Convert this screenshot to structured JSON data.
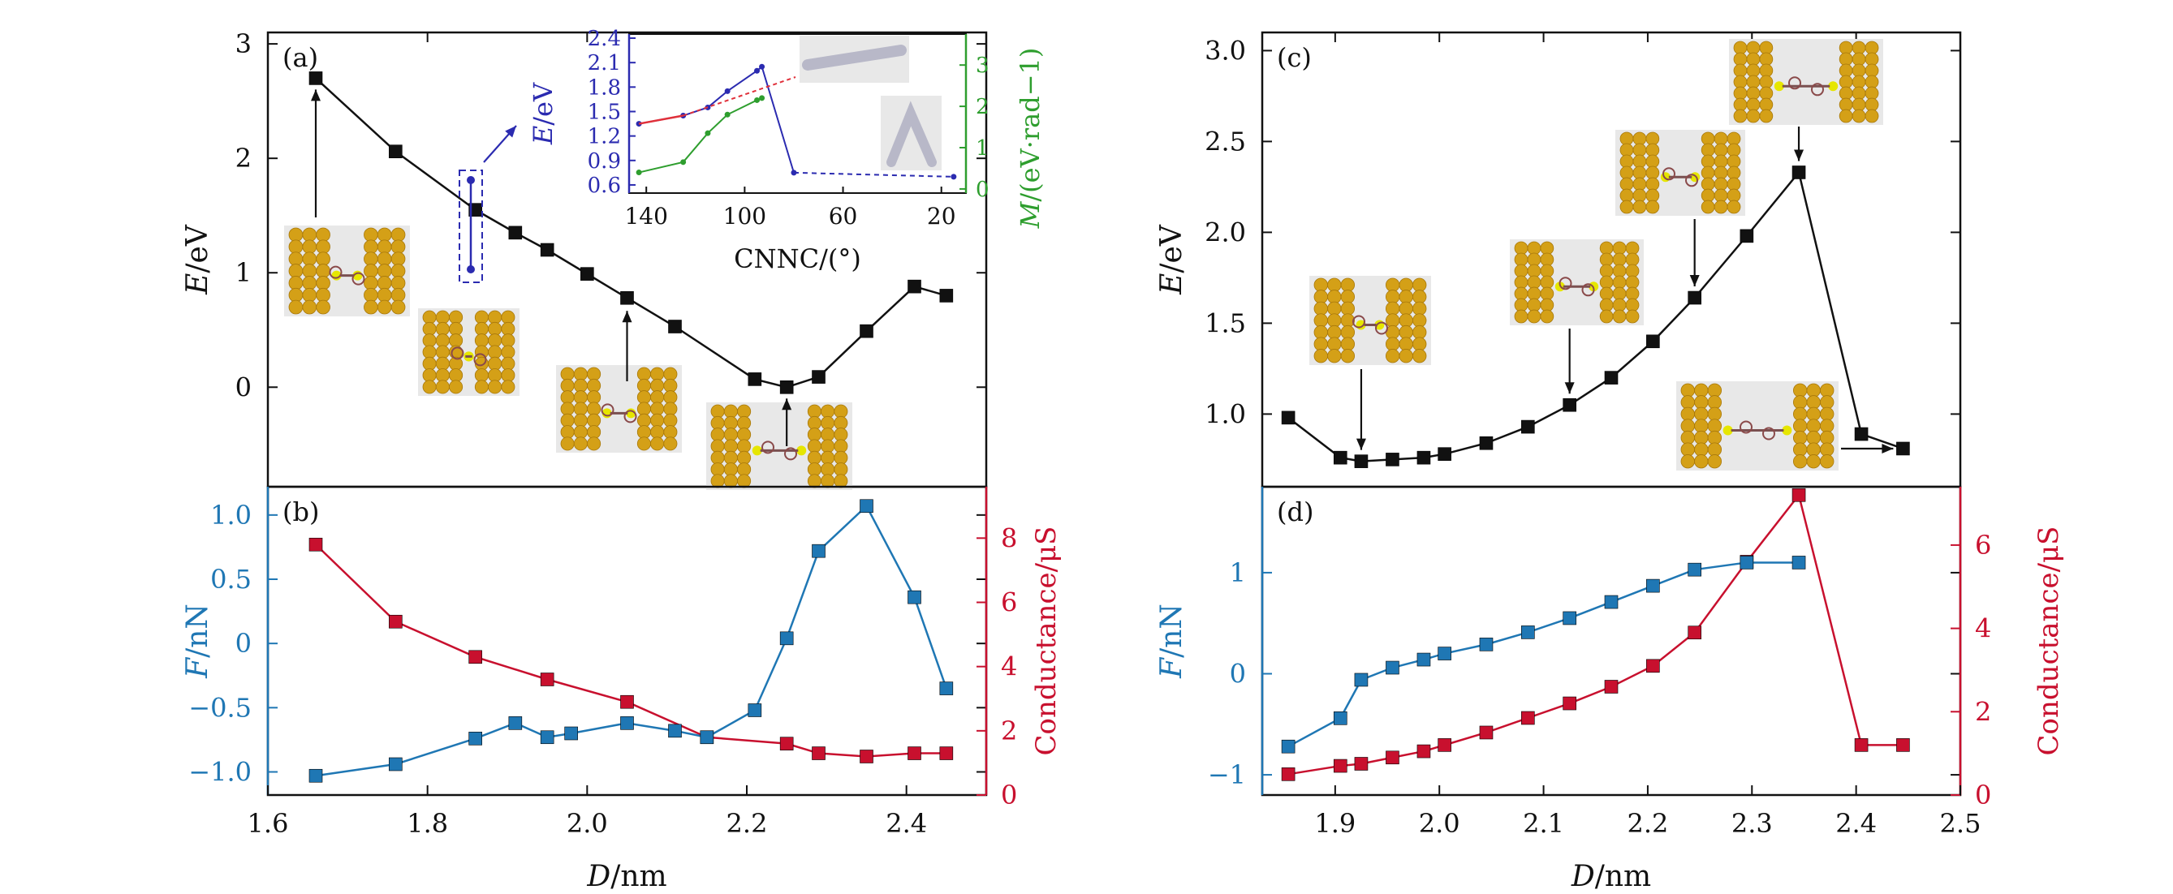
{
  "colors": {
    "black": "#111111",
    "blue": "#1f77b4",
    "red": "#c8102e",
    "inset_blue": "#2b2bb0",
    "inset_green": "#2e9e2e",
    "inset_red": "#e0303a",
    "gold": "#d4a017",
    "molecule_bg": "#e8e8e8"
  },
  "chart_data": [
    {
      "panel": "a",
      "label": "(a)",
      "type": "line",
      "ylabel": "E/eV",
      "xlim": [
        1.6,
        2.5
      ],
      "ylim": [
        -0.87,
        3.1
      ],
      "yticks": [
        0,
        1,
        2,
        3
      ],
      "yticklabels": [
        "0",
        "1",
        "2",
        "3"
      ],
      "x": [
        1.66,
        1.76,
        1.86,
        1.91,
        1.95,
        2.0,
        2.05,
        2.11,
        2.21,
        2.25,
        2.29,
        2.35,
        2.41,
        2.45
      ],
      "series": [
        {
          "values": [
            2.7,
            2.06,
            1.55,
            1.35,
            1.2,
            0.99,
            0.78,
            0.53,
            0.07,
            0.0,
            0.09,
            0.49,
            0.88,
            0.8
          ]
        }
      ],
      "inset": {
        "xlabel": "CNNC/(°)",
        "ylabel": "E/eV",
        "y2label": "M/(eV·rad−1)",
        "xticklabels": [
          "140",
          "100",
          "60",
          "20"
        ],
        "yticklabels": [
          "0.6",
          "0.9",
          "1.2",
          "1.5",
          "1.8",
          "2.1",
          "2.4"
        ],
        "y2ticklabels": [
          "0",
          "1",
          "2",
          "3"
        ],
        "xlim": [
          147,
          10
        ],
        "ylim": [
          0.5,
          2.45
        ],
        "y2lim": [
          -0.1,
          3.75
        ],
        "energy_x": [
          143,
          125,
          115,
          107,
          95,
          93,
          80,
          15
        ],
        "energy_y": [
          1.35,
          1.45,
          1.55,
          1.75,
          2.0,
          2.05,
          0.75,
          0.7
        ],
        "moment_x": [
          143,
          125,
          115,
          107,
          95,
          93
        ],
        "moment_y": [
          0.4,
          0.65,
          1.35,
          1.8,
          2.15,
          2.2
        ]
      }
    },
    {
      "panel": "b",
      "label": "(b)",
      "type": "line",
      "ylabel": "F/nN",
      "y2label": "Conductance/μS",
      "xlabel": "D/nm",
      "xlim": [
        1.6,
        2.5
      ],
      "xticks": [
        1.6,
        1.8,
        2.0,
        2.2,
        2.4
      ],
      "xticklabels": [
        "1.6",
        "1.8",
        "2.0",
        "2.2",
        "2.4"
      ],
      "ylim": [
        -1.18,
        1.22
      ],
      "yticks": [
        -1.0,
        -0.5,
        0,
        0.5,
        1.0
      ],
      "yticklabels": [
        "−1.0",
        "−0.5",
        "0",
        "0.5",
        "1.0"
      ],
      "y2lim": [
        0,
        9.6
      ],
      "y2ticks": [
        0,
        2,
        4,
        6,
        8
      ],
      "y2ticklabels": [
        "0",
        "2",
        "4",
        "6",
        "8"
      ],
      "x": [
        1.66,
        1.76,
        1.86,
        1.91,
        1.95,
        1.98,
        2.05,
        2.11,
        2.15,
        2.21,
        2.25,
        2.29,
        2.35,
        2.41,
        2.45
      ],
      "series": [
        {
          "axis": "left",
          "values": [
            -1.03,
            -0.94,
            -0.74,
            -0.62,
            -0.73,
            -0.7,
            -0.62,
            -0.68,
            -0.73,
            -0.52,
            0.04,
            0.72,
            1.07,
            0.36,
            -0.35
          ]
        },
        {
          "axis": "right",
          "x": [
            1.66,
            1.76,
            1.86,
            1.95,
            2.05,
            2.15,
            2.25,
            2.29,
            2.35,
            2.41,
            2.45
          ],
          "values": [
            7.8,
            5.4,
            4.3,
            3.6,
            2.9,
            1.8,
            1.6,
            1.3,
            1.2,
            1.3,
            1.3
          ]
        }
      ]
    },
    {
      "panel": "c",
      "label": "(c)",
      "type": "line",
      "ylabel": "E/eV",
      "xlim": [
        1.83,
        2.5
      ],
      "ylim": [
        0.6,
        3.1
      ],
      "yticks": [
        1.0,
        1.5,
        2.0,
        2.5,
        3.0
      ],
      "yticklabels": [
        "1.0",
        "1.5",
        "2.0",
        "2.5",
        "3.0"
      ],
      "x": [
        1.855,
        1.905,
        1.925,
        1.955,
        1.985,
        2.005,
        2.045,
        2.085,
        2.125,
        2.165,
        2.205,
        2.245,
        2.295,
        2.345,
        2.405,
        2.445
      ],
      "series": [
        {
          "values": [
            0.98,
            0.76,
            0.74,
            0.75,
            0.76,
            0.78,
            0.84,
            0.93,
            1.05,
            1.2,
            1.4,
            1.64,
            1.98,
            2.33,
            0.89,
            0.81
          ]
        }
      ]
    },
    {
      "panel": "d",
      "label": "(d)",
      "type": "line",
      "ylabel": "F/nN",
      "y2label": "Conductance/μS",
      "xlabel": "D/nm",
      "xlim": [
        1.83,
        2.5
      ],
      "xticks": [
        1.9,
        2.0,
        2.1,
        2.2,
        2.3,
        2.4,
        2.5
      ],
      "xticklabels": [
        "1.9",
        "2.0",
        "2.1",
        "2.2",
        "2.3",
        "2.4",
        "2.5"
      ],
      "ylim": [
        -1.2,
        1.85
      ],
      "yticks": [
        -1,
        0,
        1
      ],
      "yticklabels": [
        "−1",
        "0",
        "1"
      ],
      "y2lim": [
        0,
        7.4
      ],
      "y2ticks": [
        0,
        2,
        4,
        6
      ],
      "y2ticklabels": [
        "0",
        "2",
        "4",
        "6"
      ],
      "x": [
        1.855,
        1.905,
        1.925,
        1.955,
        1.985,
        2.005,
        2.045,
        2.085,
        2.125,
        2.165,
        2.205,
        2.245,
        2.295,
        2.345
      ],
      "series": [
        {
          "axis": "left",
          "values": [
            -0.72,
            -0.44,
            -0.06,
            0.06,
            0.14,
            0.2,
            0.29,
            0.41,
            0.55,
            0.71,
            0.87,
            1.03,
            1.1,
            1.1
          ]
        },
        {
          "axis": "right",
          "x": [
            1.855,
            1.905,
            1.925,
            1.955,
            1.985,
            2.005,
            2.045,
            2.085,
            2.125,
            2.165,
            2.205,
            2.245,
            2.295,
            2.345,
            2.405,
            2.445
          ],
          "values": [
            0.5,
            0.7,
            0.75,
            0.9,
            1.05,
            1.2,
            1.5,
            1.85,
            2.2,
            2.6,
            3.1,
            3.9,
            5.6,
            7.2,
            1.2,
            1.2
          ]
        }
      ]
    }
  ]
}
